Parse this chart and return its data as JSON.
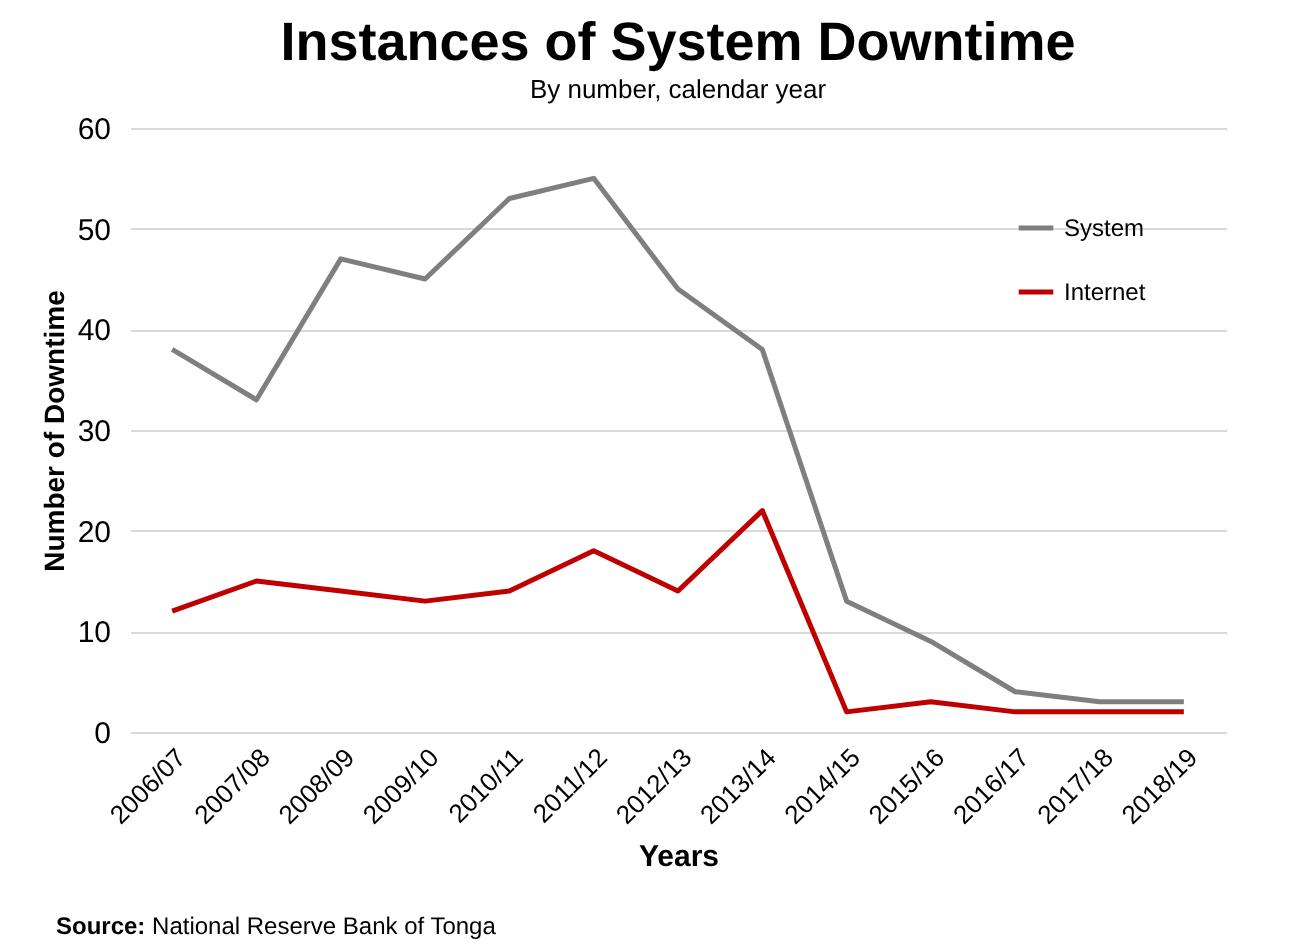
{
  "chart_data": {
    "type": "line",
    "title": "Instances of System Downtime",
    "subtitle": "By number, calendar year",
    "xlabel": "Years",
    "ylabel": "Number of Downtime",
    "annotations": [
      "Source: National Reserve Bank of Tonga"
    ],
    "categories": [
      "2006/07",
      "2007/08",
      "2008/09",
      "2009/10",
      "2010/11",
      "2011/12",
      "2012/13",
      "2013/14",
      "2014/15",
      "2015/16",
      "2016/17",
      "2017/18",
      "2018/19"
    ],
    "series": [
      {
        "name": "System",
        "color": "#7f7f7f",
        "values": [
          38,
          33,
          47,
          45,
          53,
          55,
          44,
          38,
          13,
          9,
          4,
          3,
          3
        ]
      },
      {
        "name": "Internet",
        "color": "#c00000",
        "values": [
          12,
          15,
          14,
          13,
          14,
          18,
          14,
          22,
          2,
          3,
          2,
          2,
          2
        ]
      }
    ],
    "ylim": [
      0,
      60
    ],
    "yticks": [
      0,
      10,
      20,
      30,
      40,
      50,
      60
    ],
    "grid": "y",
    "legend": "top right",
    "line_style": "solid",
    "marker": "none"
  }
}
